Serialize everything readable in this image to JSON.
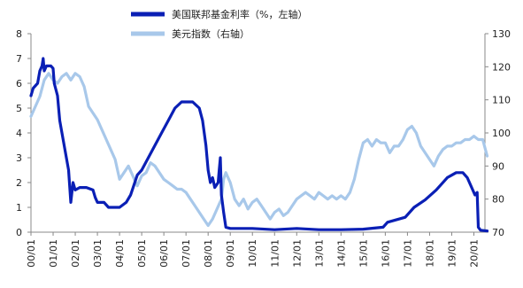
{
  "chart_data": {
    "type": "line",
    "x_ticks": [
      "00/01",
      "01/01",
      "02/01",
      "03/01",
      "04/01",
      "05/01",
      "06/01",
      "07/01",
      "08/01",
      "09/01",
      "10/01",
      "11/01",
      "12/01",
      "13/01",
      "14/01",
      "15/01",
      "16/01",
      "17/01",
      "18/01",
      "19/01",
      "20/01"
    ],
    "y_left": {
      "ticks": [
        0,
        1,
        2,
        3,
        4,
        5,
        6,
        7,
        8
      ],
      "range": [
        0,
        8
      ]
    },
    "y_right": {
      "ticks": [
        70,
        80,
        90,
        100,
        110,
        120,
        130
      ],
      "range": [
        70,
        130
      ]
    },
    "series": [
      {
        "name": "美国联邦基金利率（%，左轴）",
        "axis": "left",
        "color": "#0a1fb5",
        "points": [
          [
            0.0,
            5.5
          ],
          [
            0.1,
            5.8
          ],
          [
            0.3,
            6.0
          ],
          [
            0.4,
            6.5
          ],
          [
            0.5,
            6.7
          ],
          [
            0.55,
            7.0
          ],
          [
            0.6,
            6.5
          ],
          [
            0.7,
            6.7
          ],
          [
            0.9,
            6.7
          ],
          [
            1.0,
            6.6
          ],
          [
            1.05,
            6.0
          ],
          [
            1.2,
            5.5
          ],
          [
            1.3,
            4.5
          ],
          [
            1.5,
            3.5
          ],
          [
            1.7,
            2.5
          ],
          [
            1.8,
            1.2
          ],
          [
            1.9,
            2.0
          ],
          [
            2.0,
            1.7
          ],
          [
            2.2,
            1.8
          ],
          [
            2.5,
            1.8
          ],
          [
            2.8,
            1.7
          ],
          [
            2.9,
            1.4
          ],
          [
            3.0,
            1.2
          ],
          [
            3.3,
            1.2
          ],
          [
            3.5,
            1.0
          ],
          [
            3.8,
            1.0
          ],
          [
            4.0,
            1.0
          ],
          [
            4.3,
            1.2
          ],
          [
            4.5,
            1.5
          ],
          [
            4.8,
            2.3
          ],
          [
            5.0,
            2.5
          ],
          [
            5.3,
            3.0
          ],
          [
            5.6,
            3.5
          ],
          [
            5.9,
            4.0
          ],
          [
            6.2,
            4.5
          ],
          [
            6.5,
            5.0
          ],
          [
            6.8,
            5.25
          ],
          [
            7.0,
            5.25
          ],
          [
            7.3,
            5.25
          ],
          [
            7.6,
            5.0
          ],
          [
            7.75,
            4.5
          ],
          [
            7.9,
            3.5
          ],
          [
            8.0,
            2.5
          ],
          [
            8.1,
            2.0
          ],
          [
            8.2,
            2.2
          ],
          [
            8.3,
            1.8
          ],
          [
            8.45,
            2.0
          ],
          [
            8.5,
            2.5
          ],
          [
            8.55,
            3.0
          ],
          [
            8.6,
            1.5
          ],
          [
            8.7,
            0.8
          ],
          [
            8.8,
            0.2
          ],
          [
            9.0,
            0.15
          ],
          [
            10.0,
            0.15
          ],
          [
            11.0,
            0.1
          ],
          [
            12.0,
            0.15
          ],
          [
            13.0,
            0.1
          ],
          [
            14.0,
            0.1
          ],
          [
            15.0,
            0.12
          ],
          [
            15.9,
            0.2
          ],
          [
            16.1,
            0.4
          ],
          [
            16.9,
            0.6
          ],
          [
            17.3,
            1.0
          ],
          [
            17.8,
            1.3
          ],
          [
            18.3,
            1.7
          ],
          [
            18.8,
            2.2
          ],
          [
            19.2,
            2.4
          ],
          [
            19.5,
            2.4
          ],
          [
            19.7,
            2.2
          ],
          [
            19.9,
            1.8
          ],
          [
            20.05,
            1.5
          ],
          [
            20.15,
            1.6
          ],
          [
            20.2,
            0.2
          ],
          [
            20.3,
            0.08
          ],
          [
            20.6,
            0.05
          ]
        ]
      },
      {
        "name": "美元指数（右轴）",
        "axis": "right",
        "color": "#a8c8ea",
        "points": [
          [
            0.0,
            105
          ],
          [
            0.2,
            108
          ],
          [
            0.4,
            111
          ],
          [
            0.6,
            116
          ],
          [
            0.8,
            118
          ],
          [
            1.0,
            116
          ],
          [
            1.2,
            115
          ],
          [
            1.4,
            117
          ],
          [
            1.6,
            118
          ],
          [
            1.8,
            116
          ],
          [
            2.0,
            118
          ],
          [
            2.2,
            117
          ],
          [
            2.4,
            114
          ],
          [
            2.6,
            108
          ],
          [
            2.8,
            106
          ],
          [
            3.0,
            104
          ],
          [
            3.2,
            101
          ],
          [
            3.4,
            98
          ],
          [
            3.6,
            95
          ],
          [
            3.8,
            92
          ],
          [
            4.0,
            86
          ],
          [
            4.2,
            88
          ],
          [
            4.4,
            90
          ],
          [
            4.6,
            87
          ],
          [
            4.8,
            84
          ],
          [
            5.0,
            87
          ],
          [
            5.2,
            88
          ],
          [
            5.4,
            91
          ],
          [
            5.6,
            90
          ],
          [
            5.8,
            88
          ],
          [
            6.0,
            86
          ],
          [
            6.2,
            85
          ],
          [
            6.4,
            84
          ],
          [
            6.6,
            83
          ],
          [
            6.8,
            83
          ],
          [
            7.0,
            82
          ],
          [
            7.2,
            80
          ],
          [
            7.4,
            78
          ],
          [
            7.6,
            76
          ],
          [
            7.8,
            74
          ],
          [
            8.0,
            72
          ],
          [
            8.2,
            74
          ],
          [
            8.4,
            77
          ],
          [
            8.6,
            80
          ],
          [
            8.7,
            86
          ],
          [
            8.8,
            88
          ],
          [
            9.0,
            85
          ],
          [
            9.2,
            80
          ],
          [
            9.4,
            78
          ],
          [
            9.6,
            80
          ],
          [
            9.8,
            77
          ],
          [
            10.0,
            79
          ],
          [
            10.2,
            80
          ],
          [
            10.4,
            78
          ],
          [
            10.6,
            76
          ],
          [
            10.8,
            74
          ],
          [
            11.0,
            76
          ],
          [
            11.2,
            77
          ],
          [
            11.4,
            75
          ],
          [
            11.6,
            76
          ],
          [
            11.8,
            78
          ],
          [
            12.0,
            80
          ],
          [
            12.2,
            81
          ],
          [
            12.4,
            82
          ],
          [
            12.6,
            81
          ],
          [
            12.8,
            80
          ],
          [
            13.0,
            82
          ],
          [
            13.2,
            81
          ],
          [
            13.4,
            80
          ],
          [
            13.6,
            81
          ],
          [
            13.8,
            80
          ],
          [
            14.0,
            81
          ],
          [
            14.2,
            80
          ],
          [
            14.4,
            82
          ],
          [
            14.6,
            86
          ],
          [
            14.8,
            92
          ],
          [
            15.0,
            97
          ],
          [
            15.2,
            98
          ],
          [
            15.4,
            96
          ],
          [
            15.6,
            98
          ],
          [
            15.8,
            97
          ],
          [
            16.0,
            97
          ],
          [
            16.2,
            94
          ],
          [
            16.4,
            96
          ],
          [
            16.6,
            96
          ],
          [
            16.8,
            98
          ],
          [
            17.0,
            101
          ],
          [
            17.2,
            102
          ],
          [
            17.4,
            100
          ],
          [
            17.6,
            96
          ],
          [
            17.8,
            94
          ],
          [
            18.0,
            92
          ],
          [
            18.2,
            90
          ],
          [
            18.4,
            93
          ],
          [
            18.6,
            95
          ],
          [
            18.8,
            96
          ],
          [
            19.0,
            96
          ],
          [
            19.2,
            97
          ],
          [
            19.4,
            97
          ],
          [
            19.6,
            98
          ],
          [
            19.8,
            98
          ],
          [
            20.0,
            99
          ],
          [
            20.2,
            98
          ],
          [
            20.4,
            98
          ],
          [
            20.6,
            93
          ]
        ]
      }
    ],
    "legend": "top"
  }
}
